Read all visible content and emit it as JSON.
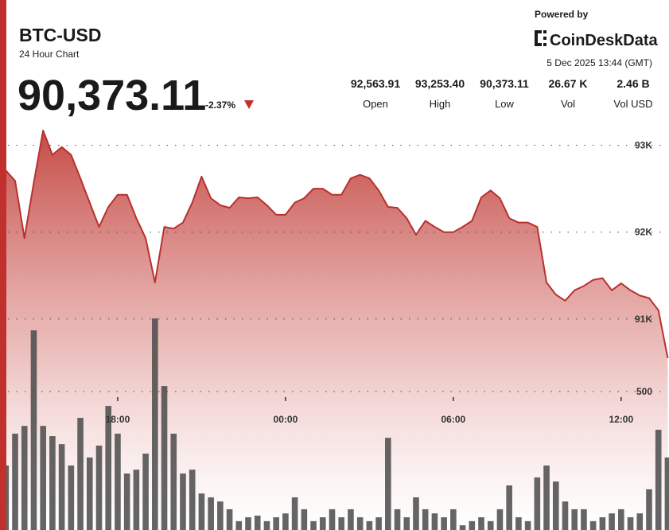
{
  "header": {
    "price": "90,373.11",
    "change": "-2.37%",
    "stats": [
      {
        "value": "92,563.91",
        "label": "Open"
      },
      {
        "value": "93,253.40",
        "label": "High"
      },
      {
        "value": "90,373.11",
        "label": "Low"
      },
      {
        "value": "26.67 K",
        "label": "Vol"
      },
      {
        "value": "2.46 B",
        "label": "Vol USD"
      }
    ],
    "powered_by": "Powered by",
    "brand": "CoinDeskData",
    "timestamp": "5 Dec 2025 13:44 (GMT)"
  },
  "chart_data": {
    "type": "line",
    "title": "BTC-USD",
    "subtitle": "24 Hour Chart",
    "x": [
      "14:00",
      "14:20",
      "14:40",
      "15:00",
      "15:20",
      "15:40",
      "16:00",
      "16:20",
      "16:40",
      "17:00",
      "17:20",
      "17:40",
      "18:00",
      "18:20",
      "18:40",
      "19:00",
      "19:20",
      "19:40",
      "20:00",
      "20:20",
      "20:40",
      "21:00",
      "21:20",
      "21:40",
      "22:00",
      "22:20",
      "22:40",
      "23:00",
      "23:20",
      "23:40",
      "00:00",
      "00:20",
      "00:40",
      "01:00",
      "01:20",
      "01:40",
      "02:00",
      "02:20",
      "02:40",
      "03:00",
      "03:20",
      "03:40",
      "04:00",
      "04:20",
      "04:40",
      "05:00",
      "05:20",
      "05:40",
      "06:00",
      "06:20",
      "06:40",
      "07:00",
      "07:20",
      "07:40",
      "08:00",
      "08:20",
      "08:40",
      "09:00",
      "09:20",
      "09:40",
      "10:00",
      "10:20",
      "10:40",
      "11:00",
      "11:20",
      "11:40",
      "12:00",
      "12:20",
      "12:40",
      "13:00",
      "13:20",
      "13:40"
    ],
    "series": [
      {
        "color": "#b8312f",
        "values": [
          92710,
          92590,
          91930,
          92570,
          93170,
          92890,
          92980,
          92890,
          92620,
          92340,
          92060,
          92290,
          92430,
          92430,
          92160,
          91930,
          91420,
          92060,
          92040,
          92110,
          92340,
          92640,
          92390,
          92310,
          92280,
          92400,
          92390,
          92400,
          92310,
          92200,
          92200,
          92340,
          92390,
          92500,
          92500,
          92430,
          92430,
          92620,
          92660,
          92620,
          92480,
          92290,
          92280,
          92160,
          91970,
          92130,
          92060,
          92000,
          92000,
          92060,
          92130,
          92400,
          92480,
          92390,
          92160,
          92110,
          92110,
          92060,
          91420,
          91280,
          91210,
          91330,
          91380,
          91450,
          91470,
          91330,
          91410,
          91330,
          91270,
          91240,
          91100,
          90550
        ]
      },
      {
        "type": "bar",
        "axis": "y2",
        "color": "#4a4a4a",
        "values": [
          233,
          348,
          376,
          721,
          376,
          339,
          310,
          233,
          405,
          262,
          305,
          448,
          348,
          204,
          218,
          276,
          764,
          520,
          348,
          204,
          218,
          132,
          118,
          103,
          75,
          32,
          46,
          52,
          32,
          46,
          60,
          118,
          75,
          32,
          46,
          75,
          46,
          75,
          46,
          32,
          46,
          333,
          75,
          46,
          118,
          75,
          60,
          46,
          75,
          17,
          32,
          46,
          32,
          75,
          161,
          46,
          32,
          190,
          233,
          175,
          103,
          75,
          75,
          32,
          46,
          60,
          75,
          46,
          60,
          147,
          362,
          262
        ]
      }
    ],
    "xticks": [
      "18:00",
      "00:00",
      "06:00",
      "12:00"
    ],
    "ylim": [
      88570,
      93390
    ],
    "yticks": [
      {
        "value": 93000,
        "label": "93K"
      },
      {
        "value": 92000,
        "label": "92K"
      },
      {
        "value": 91000,
        "label": "91K"
      }
    ],
    "y2lim": [
      0,
      1512
    ],
    "y2ticks": [
      500
    ],
    "grid": true
  }
}
